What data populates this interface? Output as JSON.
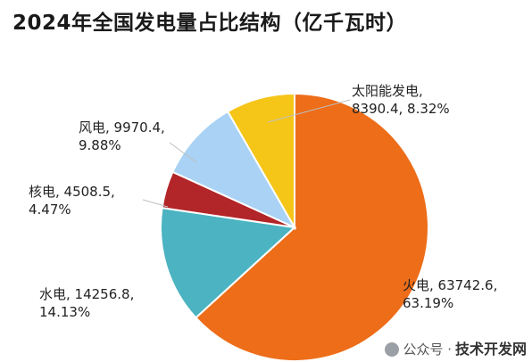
{
  "chart_data": {
    "type": "pie",
    "title": "2024年全国发电量占比结构（亿千瓦时）",
    "unit": "亿千瓦时",
    "slices": [
      {
        "name": "火电",
        "value": 63742.6,
        "percent": "63.19%",
        "label_value": "63742.6",
        "color": "#ED6D19"
      },
      {
        "name": "水电",
        "value": 14256.8,
        "percent": "14.13%",
        "label_value": "14256.8",
        "color": "#4BB3C1"
      },
      {
        "name": "核电",
        "value": 4508.5,
        "percent": "4.47%",
        "label_value": "4508.5",
        "color": "#B22528"
      },
      {
        "name": "风电",
        "value": 9970.4,
        "percent": "9.88%",
        "label_value": "9970.4",
        "color": "#A9D2F5"
      },
      {
        "name": "太阳能发电",
        "value": 8390.4,
        "percent": "8.32%",
        "label_value": "8390.4",
        "color": "#F5C518"
      }
    ]
  },
  "labels": {
    "huodian_l1": "火电, 63742.6,",
    "huodian_l2": "63.19%",
    "shuidian_l1": "水电, 14256.8,",
    "shuidian_l2": "14.13%",
    "hedian_l1": "核电, 4508.5,",
    "hedian_l2": "4.47%",
    "fengdian_l1": "风电, 9970.4,",
    "fengdian_l2": "9.88%",
    "taiyang_l1": "太阳能发电,",
    "taiyang_l2": "8390.4, 8.32%"
  },
  "watermark": {
    "source": "公众号 ·",
    "brand": "技术开发网"
  }
}
